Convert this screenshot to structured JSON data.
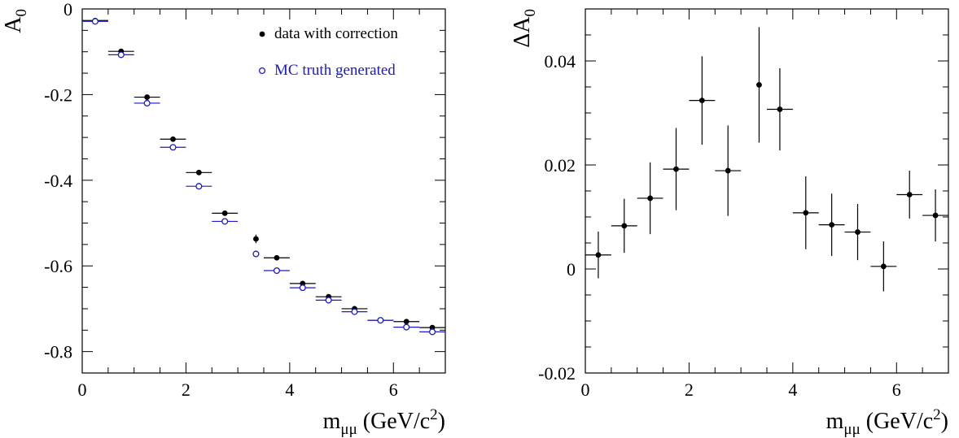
{
  "chart_data": [
    {
      "type": "scatter",
      "title": "",
      "xlabel": "m",
      "xlabel_sub": "μμ",
      "xlabel_unit_pre": " (GeV/c",
      "xlabel_unit_sup": "2",
      "xlabel_unit_post": ")",
      "ylabel": "A",
      "ylabel_sub": "0",
      "xlim": [
        0,
        7
      ],
      "ylim": [
        -0.85,
        0
      ],
      "xticks": [
        0,
        2,
        4,
        6
      ],
      "xtick_labels": [
        "0",
        "2",
        "4",
        "6"
      ],
      "yticks": [
        0,
        -0.2,
        -0.4,
        -0.6,
        -0.8
      ],
      "ytick_labels": [
        "0",
        "-0.2",
        "-0.4",
        "-0.6",
        "-0.8"
      ],
      "legend_position": "top-right",
      "series": [
        {
          "name": "data with correction",
          "color": "#000000",
          "marker": "filled-circle",
          "x": [
            0.25,
            0.75,
            1.25,
            1.75,
            2.25,
            2.75,
            3.35,
            3.75,
            4.25,
            4.75,
            5.25,
            5.75,
            6.25,
            6.75
          ],
          "xerr": [
            0.25,
            0.25,
            0.25,
            0.25,
            0.25,
            0.25,
            0.05,
            0.25,
            0.25,
            0.25,
            0.25,
            0.25,
            0.25,
            0.25
          ],
          "y": [
            -0.027,
            -0.099,
            -0.206,
            -0.304,
            -0.382,
            -0.477,
            -0.537,
            -0.581,
            -0.641,
            -0.672,
            -0.7,
            -0.727,
            -0.73,
            -0.744
          ],
          "yerr": [
            0.002,
            0.004,
            0.005,
            0.006,
            0.006,
            0.006,
            0.01,
            0.006,
            0.005,
            0.005,
            0.004,
            0.003,
            0.003,
            0.004
          ]
        },
        {
          "name": "MC truth generated",
          "color": "#1a1acc",
          "marker": "open-circle",
          "x": [
            0.25,
            0.75,
            1.25,
            1.75,
            2.25,
            2.75,
            3.35,
            3.75,
            4.25,
            4.75,
            5.25,
            5.75,
            6.25,
            6.75
          ],
          "xerr": [
            0.25,
            0.25,
            0.25,
            0.25,
            0.25,
            0.25,
            0.05,
            0.25,
            0.25,
            0.25,
            0.25,
            0.25,
            0.25,
            0.25
          ],
          "y": [
            -0.029,
            -0.107,
            -0.22,
            -0.323,
            -0.414,
            -0.496,
            -0.572,
            -0.611,
            -0.651,
            -0.68,
            -0.707,
            -0.727,
            -0.743,
            -0.754
          ],
          "yerr": [
            0,
            0,
            0,
            0,
            0,
            0,
            0,
            0,
            0,
            0,
            0,
            0,
            0,
            0
          ]
        }
      ]
    },
    {
      "type": "scatter",
      "title": "",
      "xlabel": "m",
      "xlabel_sub": "μμ",
      "xlabel_unit_pre": " (GeV/c",
      "xlabel_unit_sup": "2",
      "xlabel_unit_post": ")",
      "ylabel": "ΔA",
      "ylabel_sub": "0",
      "xlim": [
        0,
        7
      ],
      "ylim": [
        -0.02,
        0.05
      ],
      "xticks": [
        0,
        2,
        4,
        6
      ],
      "xtick_labels": [
        "0",
        "2",
        "4",
        "6"
      ],
      "yticks": [
        -0.02,
        0,
        0.02,
        0.04
      ],
      "ytick_labels": [
        "-0.02",
        "0",
        "0.02",
        "0.04"
      ],
      "series": [
        {
          "color": "#000000",
          "marker": "filled-circle",
          "x": [
            0.25,
            0.75,
            1.25,
            1.75,
            2.25,
            2.75,
            3.35,
            3.75,
            4.25,
            4.75,
            5.25,
            5.75,
            6.25,
            6.75
          ],
          "xerr": [
            0.25,
            0.25,
            0.25,
            0.25,
            0.25,
            0.25,
            0.05,
            0.25,
            0.25,
            0.25,
            0.25,
            0.25,
            0.25,
            0.25
          ],
          "y": [
            0.0027,
            0.0083,
            0.0136,
            0.0192,
            0.0324,
            0.0189,
            0.0354,
            0.0307,
            0.0108,
            0.0085,
            0.0071,
            0.0005,
            0.0143,
            0.0103
          ],
          "yerr": [
            0.0045,
            0.0052,
            0.0069,
            0.0079,
            0.0085,
            0.0087,
            0.0111,
            0.0079,
            0.007,
            0.006,
            0.0054,
            0.0048,
            0.0046,
            0.005
          ]
        }
      ]
    }
  ]
}
